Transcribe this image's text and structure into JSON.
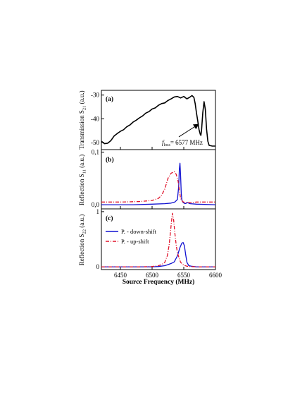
{
  "chart_data": [
    {
      "type": "line",
      "panel_label": "(a)",
      "ylabel": "Transmission S21 (a.u.)",
      "ylabel_main": "Transmission S",
      "ylabel_sub": "21",
      "ylabel_tail": " (a.u.)",
      "xlim": [
        6420,
        6600
      ],
      "ylim": [
        -53,
        -28
      ],
      "yticks": [
        -50,
        -40,
        -30
      ],
      "ytick_labels": [
        "-50",
        "-40",
        "-30"
      ],
      "annotation": {
        "prefix": "f",
        "sub": "loss",
        "value": "= 6577 MHz",
        "arrow_to": [
          6577,
          -46
        ]
      },
      "series": [
        {
          "name": "",
          "color": "#000000",
          "style": "solid",
          "x": [
            6420,
            6425,
            6430,
            6435,
            6440,
            6445,
            6450,
            6455,
            6460,
            6465,
            6470,
            6475,
            6480,
            6485,
            6490,
            6495,
            6500,
            6505,
            6510,
            6515,
            6520,
            6525,
            6530,
            6535,
            6540,
            6545,
            6550,
            6555,
            6560,
            6563,
            6566,
            6568,
            6570,
            6572,
            6574,
            6576,
            6577,
            6578,
            6580,
            6582,
            6584,
            6586,
            6588,
            6590,
            6595,
            6600
          ],
          "y": [
            -49.5,
            -50.5,
            -50.3,
            -49.2,
            -47.3,
            -46.2,
            -45.3,
            -44.6,
            -43.4,
            -42.6,
            -41.4,
            -40.6,
            -39.6,
            -38.8,
            -37.6,
            -37.0,
            -35.9,
            -35.4,
            -34.3,
            -33.6,
            -33.3,
            -32.3,
            -31.6,
            -30.8,
            -30.6,
            -31.2,
            -30.6,
            -31.6,
            -30.8,
            -30.2,
            -31.0,
            -33.6,
            -37.5,
            -40.8,
            -44.5,
            -46.5,
            -47.0,
            -45.0,
            -37.5,
            -32.8,
            -36.0,
            -44.5,
            -49.5,
            -51.2,
            -51.5,
            -51.5
          ]
        }
      ]
    },
    {
      "type": "line",
      "panel_label": "(b)",
      "ylabel": "Reflection S11 (a.u.)",
      "ylabel_main": "Reflection S",
      "ylabel_sub": "11",
      "ylabel_tail": " (a.u.)",
      "xlim": [
        6420,
        6600
      ],
      "ylim": [
        -0.008,
        0.105
      ],
      "yticks": [
        0.0,
        0.1
      ],
      "ytick_labels": [
        "0,0",
        "0,1"
      ],
      "series": [
        {
          "name": "",
          "color": "#1010d0",
          "style": "solid",
          "x": [
            6420,
            6470,
            6500,
            6520,
            6530,
            6536,
            6540,
            6542,
            6543,
            6544,
            6545,
            6546,
            6547,
            6549,
            6552,
            6556,
            6560,
            6570,
            6600
          ],
          "y": [
            0.0,
            0.0,
            0.001,
            0.002,
            0.003,
            0.005,
            0.01,
            0.035,
            0.068,
            0.079,
            0.055,
            0.022,
            0.009,
            0.004,
            0.002,
            0.004,
            0.002,
            0.001,
            0.0
          ]
        },
        {
          "name": "",
          "color": "#e0152c",
          "style": "dashdot",
          "x": [
            6420,
            6450,
            6480,
            6500,
            6510,
            6515,
            6520,
            6525,
            6530,
            6535,
            6538,
            6541,
            6543,
            6545,
            6548,
            6552,
            6560,
            6570,
            6590,
            6600
          ],
          "y": [
            0.005,
            0.005,
            0.006,
            0.008,
            0.012,
            0.018,
            0.03,
            0.05,
            0.06,
            0.063,
            0.058,
            0.045,
            0.028,
            0.012,
            0.006,
            0.004,
            0.004,
            0.005,
            0.005,
            0.005
          ]
        }
      ]
    },
    {
      "type": "line",
      "panel_label": "(c)",
      "ylabel": "Reflection S22 (a.u.)",
      "ylabel_main": "Reflection S",
      "ylabel_sub": "22",
      "ylabel_tail": " (a.u.)",
      "xlabel": "Source Frequency (MHz)",
      "xlim": [
        6420,
        6600
      ],
      "ylim": [
        -0.05,
        1.05
      ],
      "yticks": [
        0,
        1
      ],
      "ytick_labels": [
        "0",
        "1"
      ],
      "xticks": [
        6450,
        6500,
        6550,
        6600
      ],
      "xtick_labels": [
        "6450",
        "6500",
        "6550",
        "6600"
      ],
      "legend_position": "upper-left",
      "series": [
        {
          "name": "P. - down-shift",
          "color": "#1010d0",
          "style": "solid",
          "x": [
            6420,
            6480,
            6500,
            6510,
            6520,
            6525,
            6530,
            6535,
            6540,
            6544,
            6547,
            6549,
            6551,
            6553,
            6555,
            6558,
            6562,
            6570,
            6600
          ],
          "y": [
            0.0,
            0.0,
            0.0,
            0.005,
            0.02,
            0.04,
            0.06,
            0.09,
            0.2,
            0.35,
            0.43,
            0.44,
            0.38,
            0.22,
            0.08,
            0.02,
            0.01,
            0.0,
            0.0
          ]
        },
        {
          "name": "P. - up-shift",
          "color": "#e0152c",
          "style": "dashdot",
          "x": [
            6420,
            6480,
            6500,
            6510,
            6515,
            6520,
            6524,
            6527,
            6530,
            6532,
            6534,
            6536,
            6538,
            6540,
            6545,
            6550,
            6555,
            6560,
            6570,
            6600
          ],
          "y": [
            0.0,
            0.0,
            0.005,
            0.02,
            0.04,
            0.08,
            0.2,
            0.4,
            0.75,
            0.97,
            0.85,
            0.6,
            0.4,
            0.25,
            0.08,
            0.03,
            0.01,
            0.005,
            0.0,
            0.0
          ]
        }
      ]
    }
  ]
}
